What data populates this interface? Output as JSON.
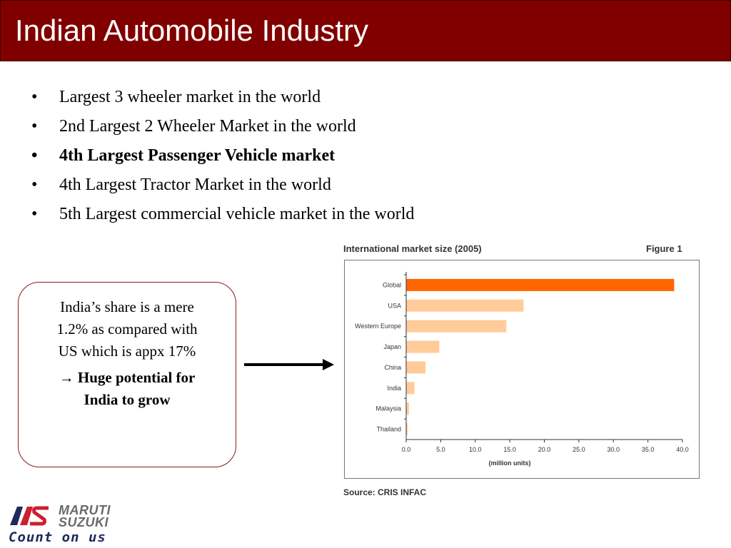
{
  "header": {
    "title": "Indian Automobile Industry",
    "background": "#800000"
  },
  "bullets": [
    {
      "text": "Largest 3 wheeler market in the world",
      "bold": false
    },
    {
      "text": "2nd Largest 2 Wheeler Market in the world",
      "bold": false
    },
    {
      "text": "4th Largest Passenger Vehicle market",
      "bold": true
    },
    {
      "text": "4th Largest Tractor Market in the world",
      "bold": false
    },
    {
      "text": "5th Largest commercial vehicle market in the world",
      "bold": false
    }
  ],
  "bullet_glyph": "•",
  "callout": {
    "line1": "India’s share is a mere",
    "line2": "1.2% as compared with",
    "line3": "US which is appx 17%",
    "arrow_glyph": "→",
    "strong1": "Huge potential for",
    "strong2": "India to grow"
  },
  "chart_data": {
    "type": "bar",
    "orientation": "horizontal",
    "title": "International market size (2005)",
    "figure_label": "Figure 1",
    "categories": [
      "Global",
      "USA",
      "Western Europe",
      "Japan",
      "China",
      "India",
      "Malaysia",
      "Thailand"
    ],
    "values": [
      38.8,
      17.0,
      14.5,
      4.8,
      2.8,
      1.2,
      0.4,
      0.2
    ],
    "xlabel": "(million units)",
    "xlim": [
      0,
      40
    ],
    "xticks": [
      "0.0",
      "5.0",
      "10.0",
      "15.0",
      "20.0",
      "25.0",
      "30.0",
      "35.0",
      "40.0"
    ],
    "highlight_color": "#ff6600",
    "bar_color": "#ffcc99",
    "source": "Source: CRIS INFAC",
    "grid": false
  },
  "logo": {
    "brand_line1": "MARUTI",
    "brand_line2": "SUZUKI",
    "tagline": "Count on us",
    "mark_color_red": "#cc1f2f",
    "mark_color_blue": "#1e2a5a"
  }
}
